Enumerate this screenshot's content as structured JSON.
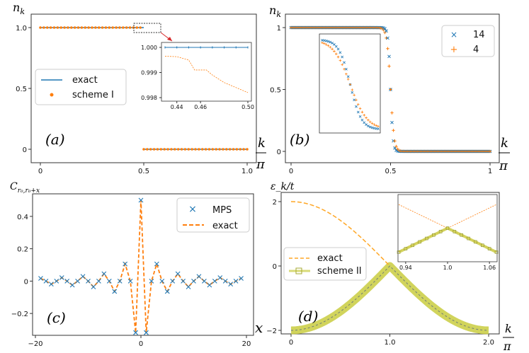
{
  "chart_data": [
    {
      "panel": "a",
      "type": "line",
      "panel_label": "(a)",
      "ylabel": "n_k",
      "xlabel_num": "k",
      "xlabel_den": "π",
      "xlim": [
        0,
        1.0
      ],
      "ylim": [
        0,
        1.0
      ],
      "xticks": [
        "0",
        "0.5",
        "1.0"
      ],
      "yticks": [
        "0",
        "0.5",
        "1.0"
      ],
      "series": [
        {
          "name": "exact",
          "style": "line",
          "color": "#1f77b4"
        },
        {
          "name": "scheme I",
          "style": "dots",
          "color": "#ff7f0e"
        }
      ],
      "step_at": 0.5,
      "inset": {
        "xlim": [
          0.43,
          0.5
        ],
        "ylim": [
          0.998,
          1.0
        ],
        "xticks": [
          "0.44",
          "0.46",
          "0.50"
        ],
        "yticks": [
          "1.000",
          "0.999",
          "0.998"
        ],
        "exact": [
          1.0,
          1.0,
          1.0,
          1.0,
          1.0,
          1.0,
          1.0,
          1.0
        ],
        "scheme_x": [
          0.43,
          0.44,
          0.45,
          0.455,
          0.465,
          0.47,
          0.48,
          0.49,
          0.5
        ],
        "scheme_y": [
          0.99965,
          0.99963,
          0.9995,
          0.9991,
          0.9991,
          0.9989,
          0.9986,
          0.9984,
          0.9982
        ]
      }
    },
    {
      "panel": "b",
      "type": "scatter",
      "panel_label": "(b)",
      "ylabel": "n_k",
      "xlabel_num": "k",
      "xlabel_den": "π",
      "xlim": [
        0,
        1
      ],
      "ylim": [
        0,
        1
      ],
      "xticks": [
        "0",
        "0.5",
        "1"
      ],
      "yticks": [
        "0",
        "0.5",
        "1"
      ],
      "series": [
        {
          "name": "14",
          "marker": "x",
          "color": "#1f77b4"
        },
        {
          "name": "4",
          "marker": "+",
          "color": "#ff7f0e"
        }
      ],
      "transition": [
        0.47,
        0.53
      ]
    },
    {
      "panel": "c",
      "type": "line",
      "panel_label": "(c)",
      "ylabel": "C_{r0,r0+x}",
      "xlabel": "x",
      "xlim": [
        -20,
        20
      ],
      "ylim": [
        -0.3,
        0.5
      ],
      "xticks": [
        "−20",
        "0",
        "20"
      ],
      "yticks": [
        "−0.2",
        "0",
        "0.2",
        "0.4"
      ],
      "series": [
        {
          "name": "MPS",
          "marker": "x",
          "color": "#1f77b4"
        },
        {
          "name": "exact",
          "style": "dashed",
          "color": "#ff7f0e"
        }
      ],
      "peak": 0.5,
      "minima": -0.3
    },
    {
      "panel": "d",
      "type": "line",
      "panel_label": "(d)",
      "ylabel": "ε_k/t",
      "xlabel_num": "k",
      "xlabel_den": "π",
      "xlim": [
        0,
        2.0
      ],
      "ylim": [
        -2,
        2
      ],
      "xticks": [
        "0",
        "1.0",
        "2.0"
      ],
      "yticks": [
        "−2",
        "0",
        "2"
      ],
      "series": [
        {
          "name": "exact",
          "style": "dashed",
          "color": "#ffa726"
        },
        {
          "name": "scheme II",
          "style": "band",
          "color": "#c9cc3f"
        }
      ],
      "inset": {
        "xticks": [
          "0.94",
          "1.0",
          "1.06"
        ]
      }
    }
  ]
}
